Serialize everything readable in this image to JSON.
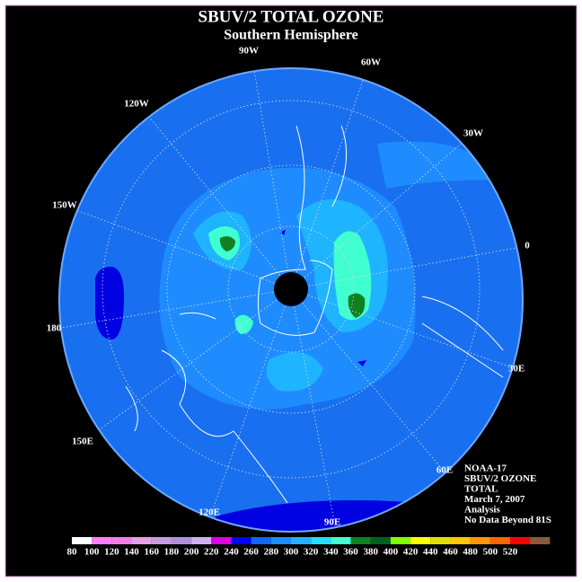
{
  "header": {
    "title": "SBUV/2 TOTAL OZONE",
    "subtitle": "Southern Hemisphere"
  },
  "longitude_labels": [
    "90W",
    "60W",
    "30W",
    "0",
    "30E",
    "60E",
    "90E",
    "120E",
    "150E",
    "180",
    "150W",
    "120W"
  ],
  "info": [
    "NOAA-17",
    "SBUV/2 OZONE",
    "TOTAL",
    "March 7, 2007",
    "Analysis",
    "No Data Beyond 81S"
  ],
  "colorbar": {
    "ticks": [
      80,
      100,
      120,
      140,
      160,
      180,
      200,
      220,
      240,
      260,
      280,
      300,
      320,
      340,
      360,
      380,
      400,
      420,
      440,
      460,
      480,
      500,
      520
    ],
    "colors": [
      "#ffffff",
      "#ff80ff",
      "#f080e8",
      "#e6a0e6",
      "#c89be0",
      "#b090d8",
      "#d0b0f0",
      "#e000e0",
      "#0000ff",
      "#1464ff",
      "#1e8cff",
      "#1eb4ff",
      "#20e0ff",
      "#40ffd0",
      "#108020",
      "#006020",
      "#80ff00",
      "#ffff00",
      "#e0e000",
      "#ffc800",
      "#ff9600",
      "#ff6400",
      "#ff0000",
      "#8b5a3c"
    ]
  }
}
